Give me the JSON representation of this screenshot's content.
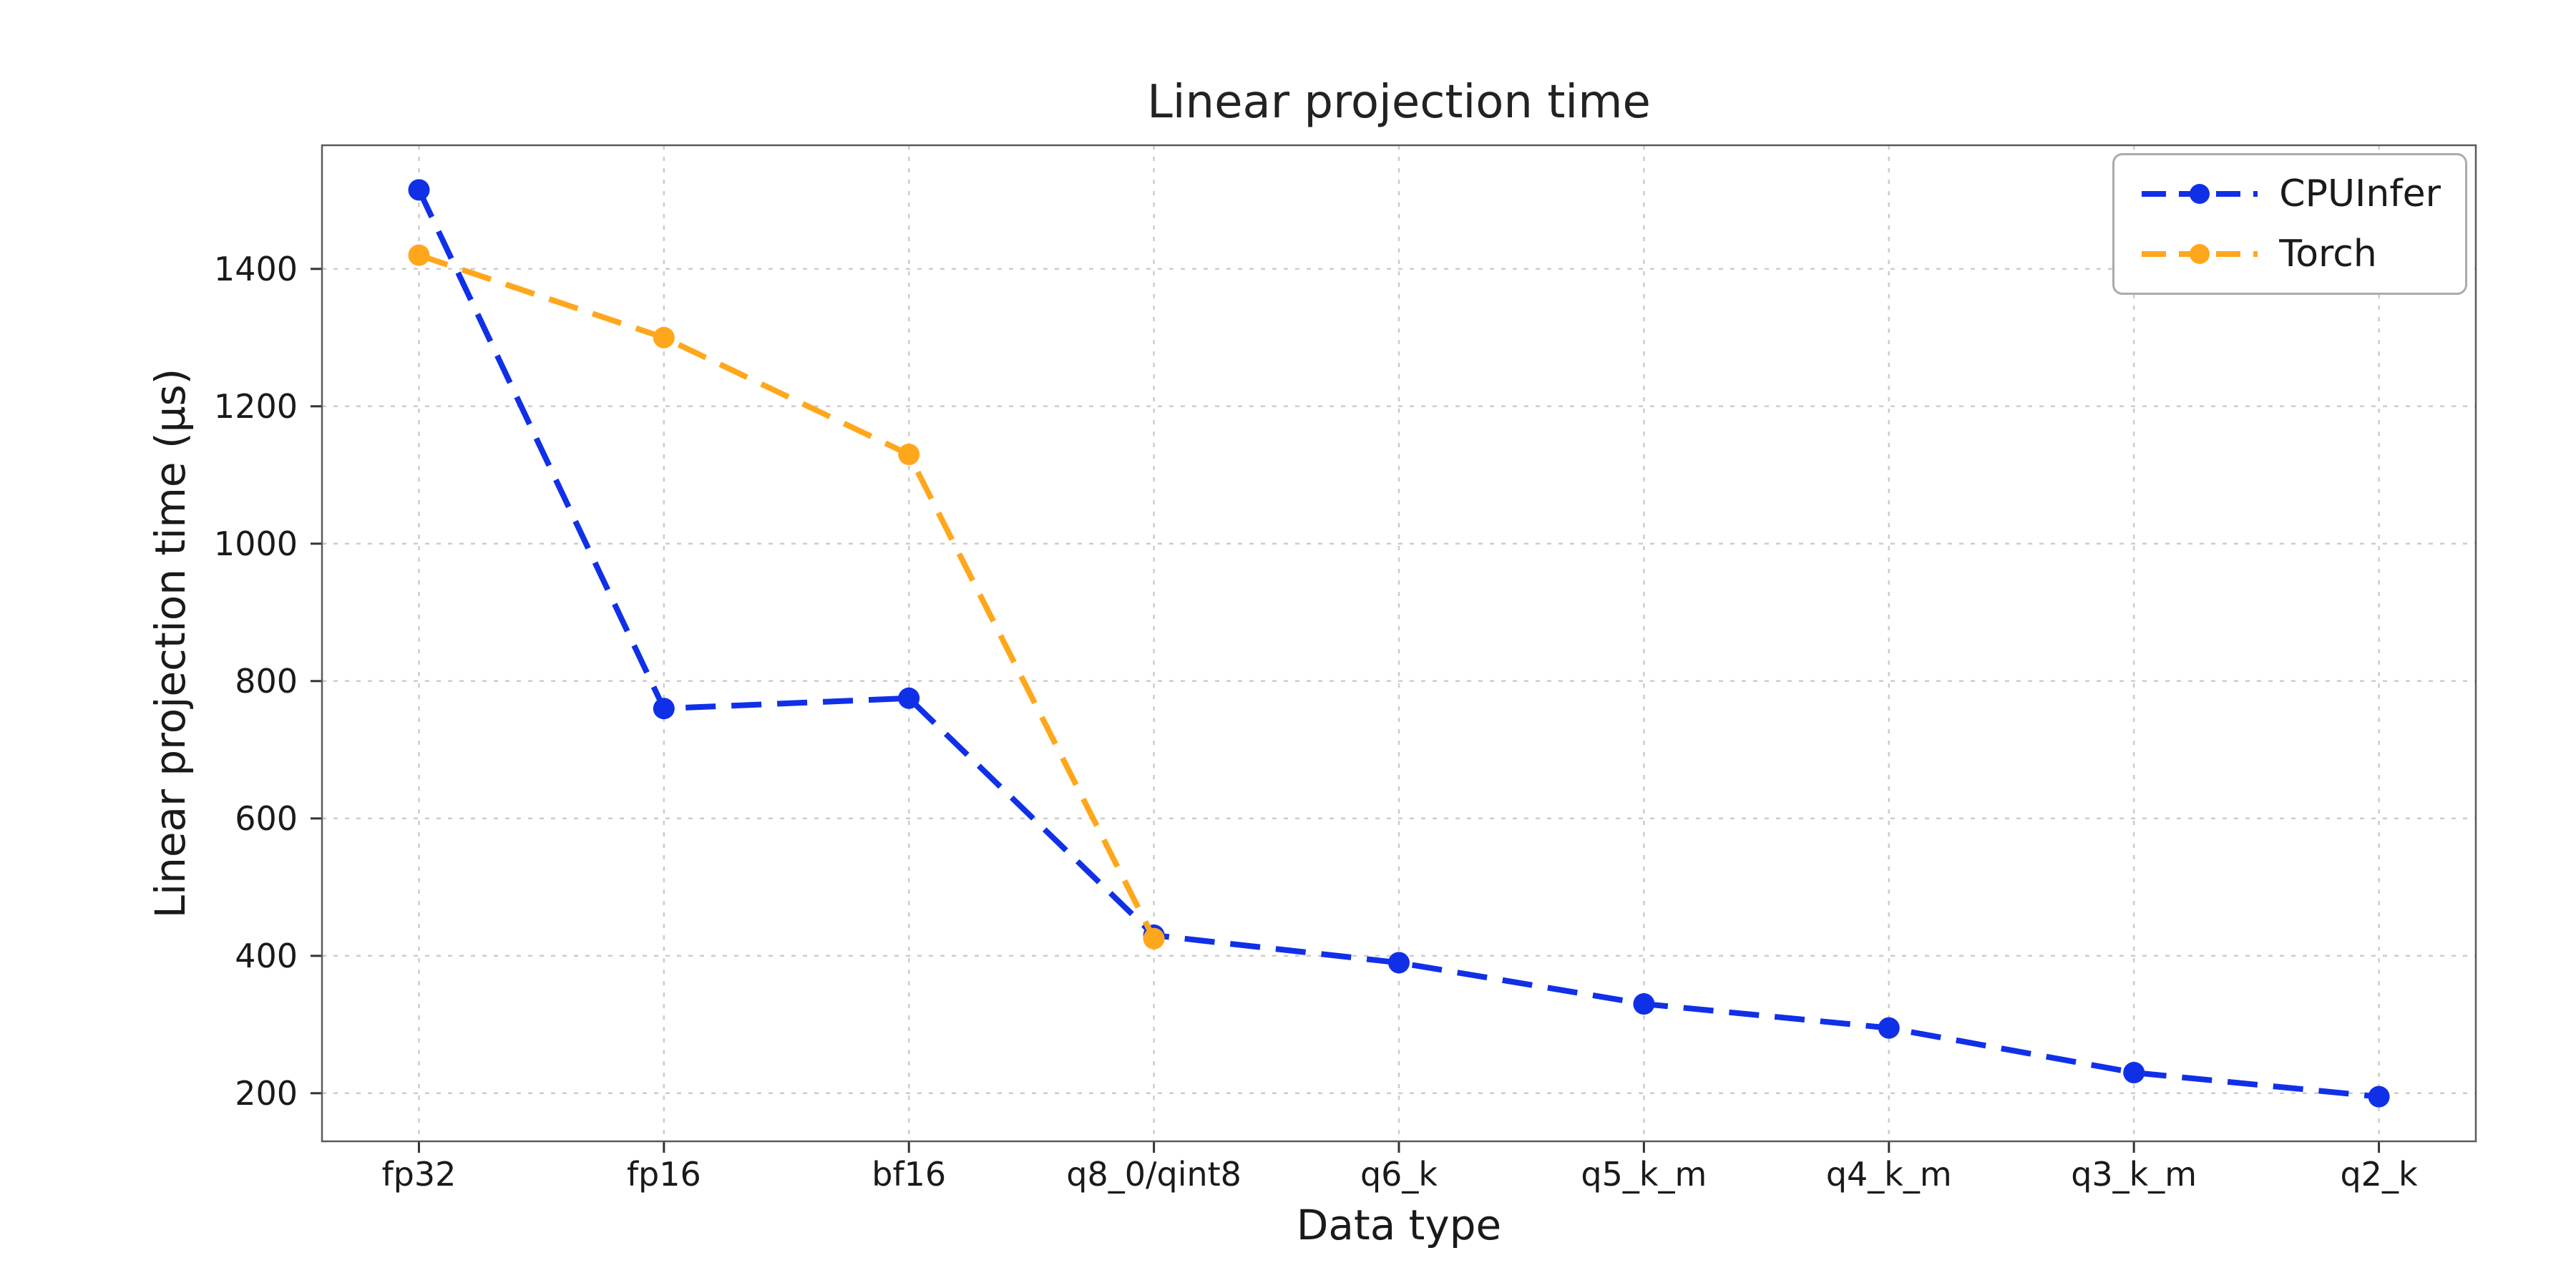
{
  "page": {
    "background": "#ffffff"
  },
  "chart_data": {
    "type": "line",
    "title": "Linear projection time",
    "xlabel": "Data type",
    "ylabel": "Linear projection time (µs)",
    "categories": [
      "fp32",
      "fp16",
      "bf16",
      "q8_0/qint8",
      "q6_k",
      "q5_k_m",
      "q4_k_m",
      "q3_k_m",
      "q2_k"
    ],
    "series": [
      {
        "name": "CPUInfer",
        "color": "#1030e8",
        "linestyle": "dashed",
        "marker": "circle",
        "values": [
          1515,
          760,
          775,
          430,
          390,
          330,
          295,
          230,
          195
        ]
      },
      {
        "name": "Torch",
        "color": "#ffa71c",
        "linestyle": "dashed",
        "marker": "circle",
        "values": [
          1420,
          1300,
          1130,
          425,
          null,
          null,
          null,
          null,
          null
        ]
      }
    ],
    "ylim": [
      130,
      1580
    ],
    "yticks": [
      200,
      400,
      600,
      800,
      1000,
      1200,
      1400
    ],
    "grid": true,
    "legend_position": "upper right"
  }
}
